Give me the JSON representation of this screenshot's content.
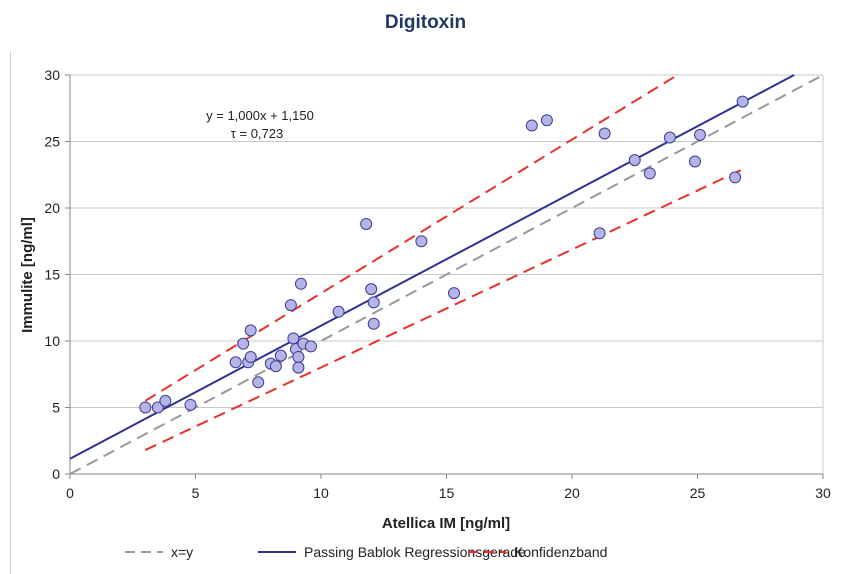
{
  "chart_data": {
    "type": "scatter",
    "title": "Digitoxin",
    "xlabel": "Atellica IM [ng/ml]",
    "ylabel": "Immulite [ng/ml]",
    "xlim": [
      0,
      30
    ],
    "ylim": [
      0,
      30
    ],
    "xticks": [
      0,
      5,
      10,
      15,
      20,
      25,
      30
    ],
    "yticks": [
      0,
      5,
      10,
      15,
      20,
      25,
      30
    ],
    "grid": "horizontal",
    "legend_position": "bottom",
    "annotation": {
      "equation": "y = 1,000x + 1,150",
      "tau": "τ = 0,723"
    },
    "points": [
      {
        "x": 3.0,
        "y": 5.0
      },
      {
        "x": 3.5,
        "y": 5.0
      },
      {
        "x": 3.8,
        "y": 5.5
      },
      {
        "x": 4.8,
        "y": 5.2
      },
      {
        "x": 6.6,
        "y": 8.4
      },
      {
        "x": 6.9,
        "y": 9.8
      },
      {
        "x": 7.1,
        "y": 8.4
      },
      {
        "x": 7.2,
        "y": 8.8
      },
      {
        "x": 7.2,
        "y": 10.8
      },
      {
        "x": 7.5,
        "y": 6.9
      },
      {
        "x": 8.0,
        "y": 8.3
      },
      {
        "x": 8.2,
        "y": 8.1
      },
      {
        "x": 8.4,
        "y": 8.9
      },
      {
        "x": 8.8,
        "y": 12.7
      },
      {
        "x": 8.9,
        "y": 10.2
      },
      {
        "x": 9.0,
        "y": 9.4
      },
      {
        "x": 9.1,
        "y": 8.8
      },
      {
        "x": 9.1,
        "y": 8.0
      },
      {
        "x": 9.2,
        "y": 14.3
      },
      {
        "x": 9.3,
        "y": 9.8
      },
      {
        "x": 9.6,
        "y": 9.6
      },
      {
        "x": 10.7,
        "y": 12.2
      },
      {
        "x": 11.8,
        "y": 18.8
      },
      {
        "x": 12.0,
        "y": 13.9
      },
      {
        "x": 12.1,
        "y": 12.9
      },
      {
        "x": 12.1,
        "y": 11.3
      },
      {
        "x": 14.0,
        "y": 17.5
      },
      {
        "x": 15.3,
        "y": 13.6
      },
      {
        "x": 18.4,
        "y": 26.2
      },
      {
        "x": 19.0,
        "y": 26.6
      },
      {
        "x": 21.1,
        "y": 18.1
      },
      {
        "x": 21.3,
        "y": 25.6
      },
      {
        "x": 22.5,
        "y": 23.6
      },
      {
        "x": 23.1,
        "y": 22.6
      },
      {
        "x": 23.9,
        "y": 25.3
      },
      {
        "x": 24.9,
        "y": 23.5
      },
      {
        "x": 25.1,
        "y": 25.5
      },
      {
        "x": 26.5,
        "y": 22.3
      },
      {
        "x": 26.8,
        "y": 28.0
      }
    ],
    "lines": [
      {
        "name": "x=y",
        "color": "#999999",
        "dash": true,
        "x": [
          0,
          30
        ],
        "y": [
          0,
          30
        ]
      },
      {
        "name": "Passing Bablok Regressionsgerade",
        "color": "#2e3192",
        "dash": false,
        "x": [
          0,
          28.85
        ],
        "y": [
          1.15,
          30
        ]
      },
      {
        "name": "Konfidenzband",
        "color": "#e8312b",
        "dash": true,
        "x": [
          3.0,
          24.2
        ],
        "y": [
          5.5,
          30
        ]
      },
      {
        "name": "Konfidenzband",
        "color": "#e8312b",
        "dash": true,
        "x": [
          3.0,
          26.9
        ],
        "y": [
          1.8,
          23.0
        ]
      }
    ],
    "legend": [
      {
        "label": "x=y",
        "color": "#999999",
        "dash": true
      },
      {
        "label": "Passing Bablok Regressionsgerade",
        "color": "#2e3192",
        "dash": false
      },
      {
        "label": "Konfidenzband",
        "color": "#e8312b",
        "dash": true
      }
    ],
    "colors": {
      "marker_fill": "#b4b4e6",
      "marker_stroke": "#3c3c96",
      "grid": "#c8c8c8",
      "axis": "#868686",
      "title": "#1f3864"
    }
  }
}
